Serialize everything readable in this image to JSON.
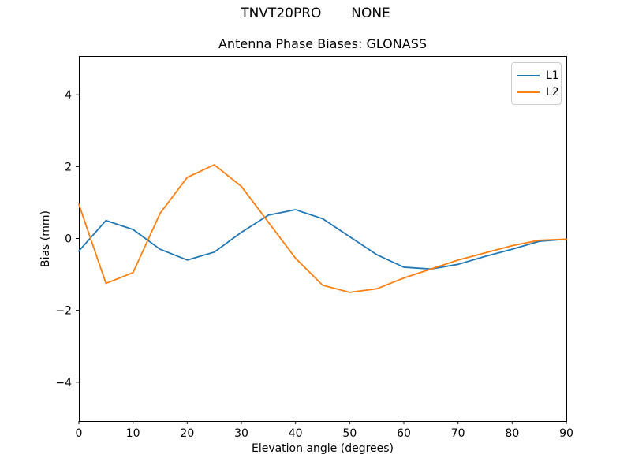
{
  "figure": {
    "suptitle": "TNVT20PRO       NONE",
    "axes_title": "Antenna Phase Biases: GLONASS",
    "xlabel": "Elevation angle (degrees)",
    "ylabel": "Bias (mm)",
    "background_color": "#ffffff",
    "axes_frame_color": "#000000"
  },
  "chart_data": {
    "type": "line",
    "title": "Antenna Phase Biases: GLONASS",
    "suptitle": "TNVT20PRO       NONE",
    "xlabel": "Elevation angle (degrees)",
    "ylabel": "Bias (mm)",
    "x": [
      0,
      5,
      10,
      15,
      20,
      25,
      30,
      35,
      40,
      45,
      50,
      55,
      60,
      65,
      70,
      75,
      80,
      85,
      90
    ],
    "series": [
      {
        "name": "L1",
        "color": "#1f77b4",
        "values": [
          -0.35,
          0.5,
          0.25,
          -0.3,
          -0.6,
          -0.38,
          0.17,
          0.65,
          0.8,
          0.55,
          0.05,
          -0.45,
          -0.8,
          -0.85,
          -0.72,
          -0.5,
          -0.3,
          -0.08,
          -0.02
        ]
      },
      {
        "name": "L2",
        "color": "#ff7f0e",
        "values": [
          0.95,
          -1.25,
          -0.95,
          0.7,
          1.7,
          2.05,
          1.45,
          0.45,
          -0.55,
          -1.3,
          -1.5,
          -1.4,
          -1.1,
          -0.85,
          -0.6,
          -0.4,
          -0.2,
          -0.05,
          -0.02
        ]
      }
    ],
    "xlim": [
      0,
      90
    ],
    "ylim": [
      -5.08,
      5.08
    ],
    "xticks": [
      0,
      10,
      20,
      30,
      40,
      50,
      60,
      70,
      80,
      90
    ],
    "xtick_labels": [
      "0",
      "10",
      "20",
      "30",
      "40",
      "50",
      "60",
      "70",
      "80",
      "90"
    ],
    "yticks": [
      -4,
      -2,
      0,
      2,
      4
    ],
    "ytick_labels": [
      "−4",
      "−2",
      "0",
      "2",
      "4"
    ],
    "grid": false,
    "legend": {
      "position": "upper right",
      "entries": [
        "L1",
        "L2"
      ]
    }
  }
}
